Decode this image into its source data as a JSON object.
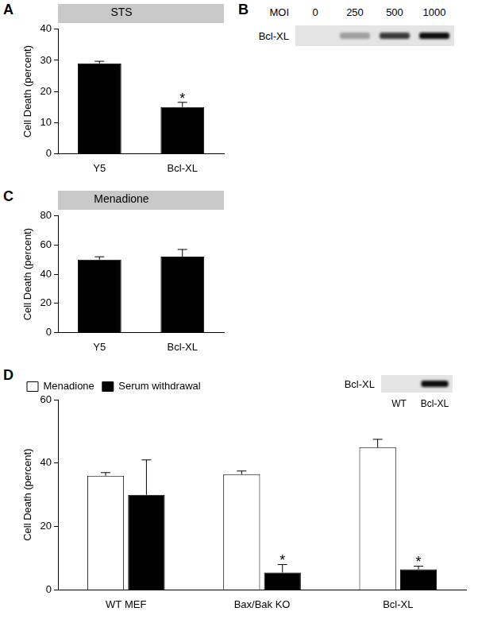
{
  "chart_data": [
    {
      "type": "bar",
      "panel": "A",
      "title": "STS",
      "categories": [
        "Y5",
        "Bcl-XL"
      ],
      "values": [
        29,
        15
      ],
      "errors": [
        0.7,
        1.5
      ],
      "color": "#000000",
      "ylabel": "Cell Death (percent)",
      "ylim": [
        0,
        40
      ],
      "yticks": [
        0,
        10,
        20,
        30,
        40
      ],
      "grid": false,
      "annotations": [
        {
          "category": "Bcl-XL",
          "text": "*"
        }
      ]
    },
    {
      "type": "bar",
      "panel": "C",
      "title": "Menadione",
      "categories": [
        "Y5",
        "Bcl-XL"
      ],
      "values": [
        50,
        52
      ],
      "errors": [
        2,
        5
      ],
      "color": "#000000",
      "ylabel": "Cell Death (percent)",
      "ylim": [
        0,
        80
      ],
      "yticks": [
        0,
        20,
        40,
        60,
        80
      ],
      "grid": false
    },
    {
      "type": "bar",
      "panel": "D",
      "categories": [
        "WT MEF",
        "Bax/Bak KO",
        "Bcl-XL"
      ],
      "series": [
        {
          "name": "Menadione",
          "color": "#ffffff",
          "values": [
            36,
            36.5,
            45
          ],
          "errors": [
            1,
            1,
            2.5
          ]
        },
        {
          "name": "Serum withdrawal",
          "color": "#000000",
          "values": [
            30,
            5.5,
            6.5
          ],
          "errors": [
            11,
            2.5,
            1
          ]
        }
      ],
      "ylabel": "Cell Death (percent)",
      "ylim": [
        0,
        60
      ],
      "yticks": [
        0,
        20,
        40,
        60
      ],
      "grid": false,
      "legend": "upper left",
      "annotations": [
        {
          "category": "Bax/Bak KO",
          "series": "Serum withdrawal",
          "text": "*"
        },
        {
          "category": "Bcl-XL",
          "series": "Serum withdrawal",
          "text": "*"
        }
      ]
    }
  ],
  "blots": [
    {
      "panel": "B",
      "header": "MOI",
      "band": "Bcl-XL",
      "lanes": [
        0,
        250,
        500,
        1000
      ],
      "intensity": [
        0,
        0.3,
        0.8,
        1
      ]
    },
    {
      "panel": "D",
      "band": "Bcl-XL",
      "lanes": [
        "WT",
        "Bcl-XL"
      ],
      "intensity": [
        0,
        1
      ]
    }
  ]
}
